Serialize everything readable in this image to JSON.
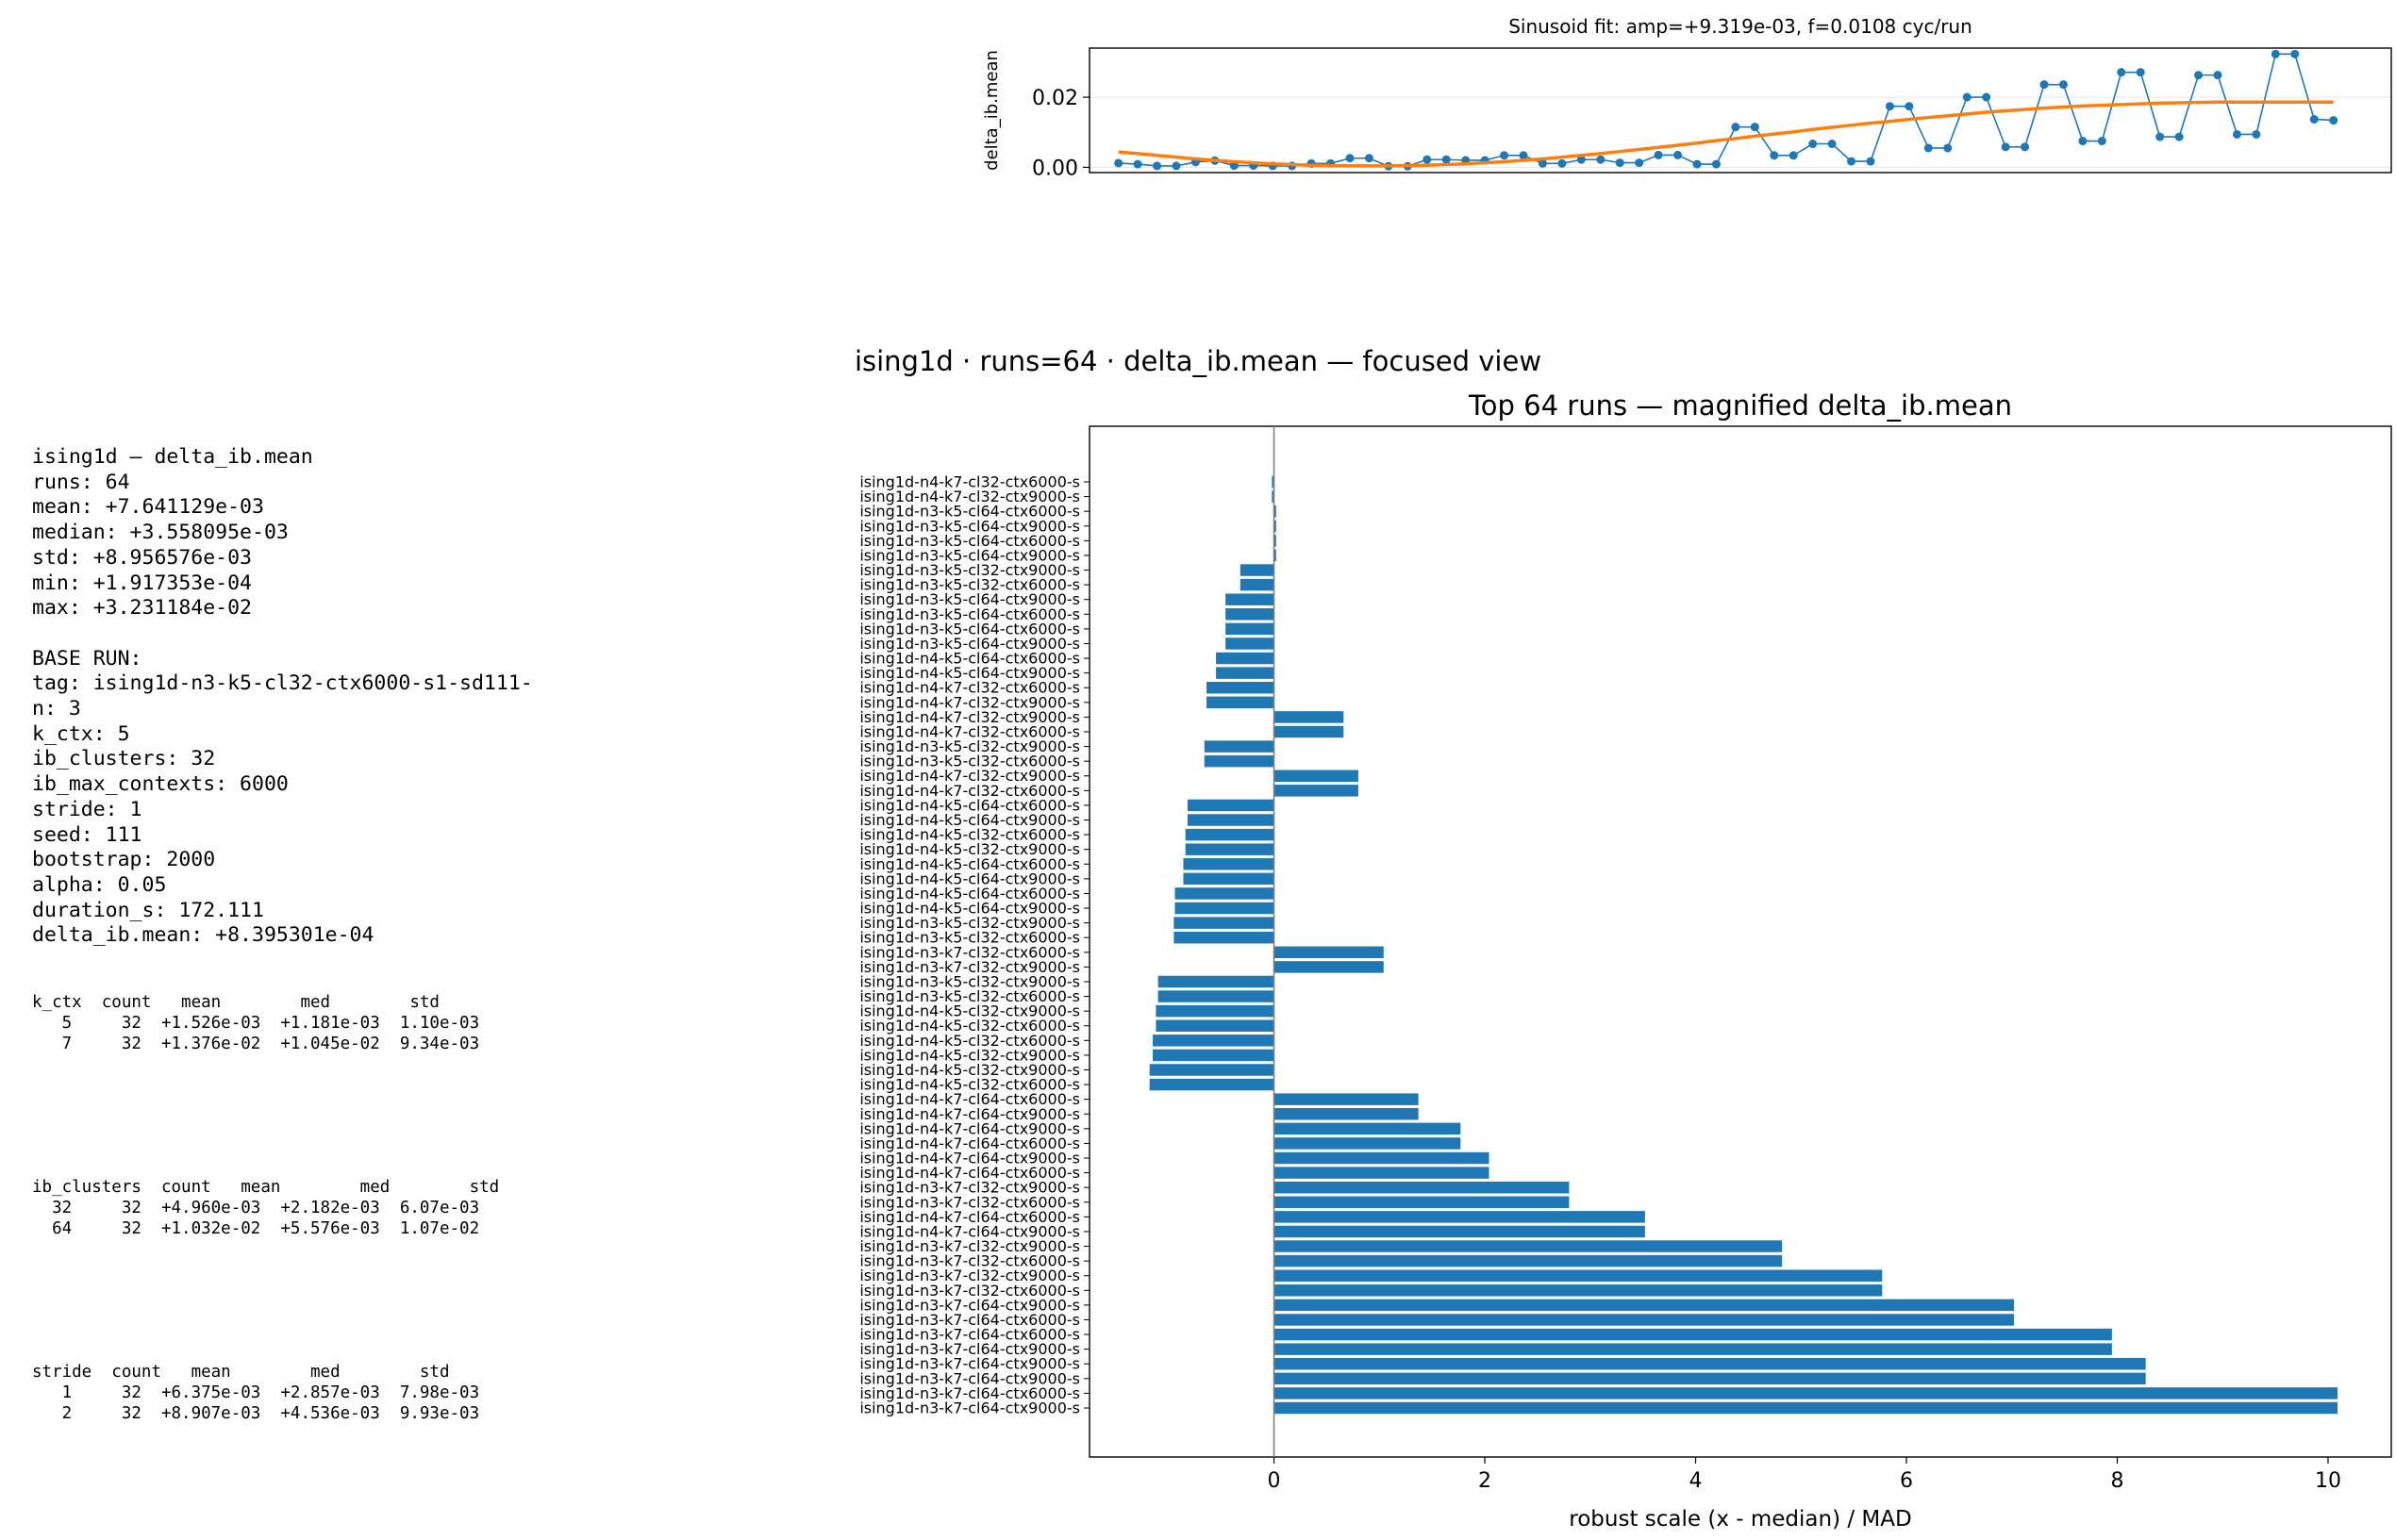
{
  "suptitle": "ising1d · runs=64 · delta_ib.mean — focused view",
  "info_lines": [
    "ising1d — delta_ib.mean",
    "runs: 64",
    "mean: +7.641129e-03",
    "median: +3.558095e-03",
    "std: +8.956576e-03",
    "min: +1.917353e-04",
    "max: +3.231184e-02",
    "",
    "BASE RUN:",
    "tag: ising1d-n3-k5-cl32-ctx6000-s1-sd111-",
    "n: 3",
    "k_ctx: 5",
    "ib_clusters: 32",
    "ib_max_contexts: 6000",
    "stride: 1",
    "seed: 111",
    "bootstrap: 2000",
    "alpha: 0.05",
    "duration_s: 172.111",
    "delta_ib.mean: +8.395301e-04"
  ],
  "tables": {
    "k_ctx": [
      "k_ctx  count   mean        med        std",
      "   5     32  +1.526e-03  +1.181e-03  1.10e-03",
      "   7     32  +1.376e-02  +1.045e-02  9.34e-03"
    ],
    "ib_clusters": [
      "ib_clusters  count   mean        med        std",
      "  32     32  +4.960e-03  +2.182e-03  6.07e-03",
      "  64     32  +1.032e-02  +5.576e-03  1.07e-02"
    ],
    "stride": [
      "stride  count   mean        med        std",
      "   1     32  +6.375e-03  +2.857e-03  7.98e-03",
      "   2     32  +8.907e-03  +4.536e-03  9.93e-03"
    ]
  },
  "chart_data": [
    {
      "type": "line",
      "title": "Sinusoid fit: amp=+9.319e-03, f=0.0108 cyc/run",
      "xlabel": "",
      "ylabel": "delta_ib.mean",
      "yticks": [
        "0.00",
        "0.02"
      ],
      "ylim": [
        -0.0015,
        0.034
      ],
      "xlim": [
        -1.5,
        66
      ],
      "grid": "y",
      "colors": {
        "data": "#1f77b4",
        "fit": "#ff7f0e"
      },
      "series": [
        {
          "kind": "observed",
          "values": [
            0.0012,
            0.0009,
            0.0004,
            0.0004,
            0.0015,
            0.0019,
            0.0005,
            0.0005,
            0.0004,
            0.0004,
            0.0011,
            0.0011,
            0.0026,
            0.0026,
            0.0003,
            0.0003,
            0.0022,
            0.0022,
            0.002,
            0.002,
            0.0034,
            0.0034,
            0.0011,
            0.0011,
            0.0022,
            0.0022,
            0.0013,
            0.0013,
            0.0035,
            0.0035,
            0.0009,
            0.0009,
            0.0115,
            0.0115,
            0.0034,
            0.0034,
            0.0067,
            0.0067,
            0.0017,
            0.0017,
            0.0174,
            0.0174,
            0.0055,
            0.0055,
            0.02,
            0.02,
            0.0058,
            0.0058,
            0.0236,
            0.0236,
            0.0075,
            0.0075,
            0.0271,
            0.0271,
            0.0087,
            0.0087,
            0.0263,
            0.0263,
            0.0094,
            0.0094,
            0.0323,
            0.0323,
            0.0137,
            0.0134
          ]
        },
        {
          "kind": "fit",
          "values": [
            0.0044,
            0.0039,
            0.0034,
            0.0029,
            0.0024,
            0.002,
            0.0016,
            0.0013,
            0.001,
            0.0008,
            0.0006,
            0.0005,
            0.0004,
            0.0004,
            0.0004,
            0.0005,
            0.0006,
            0.0008,
            0.001,
            0.0013,
            0.0016,
            0.002,
            0.0024,
            0.0029,
            0.0034,
            0.0039,
            0.0045,
            0.0051,
            0.0057,
            0.0063,
            0.0069,
            0.0076,
            0.0082,
            0.0089,
            0.0095,
            0.0101,
            0.0108,
            0.0114,
            0.012,
            0.0126,
            0.0131,
            0.0137,
            0.0142,
            0.0147,
            0.0152,
            0.0157,
            0.0161,
            0.0165,
            0.0169,
            0.0172,
            0.0175,
            0.0177,
            0.0179,
            0.0181,
            0.0183,
            0.0184,
            0.0185,
            0.0186,
            0.0186,
            0.0186,
            0.0186,
            0.0186,
            0.0186,
            0.0186
          ]
        }
      ]
    },
    {
      "type": "bar",
      "orientation": "horizontal",
      "title": "Top 64 runs — magnified delta_ib.mean",
      "xlabel": "robust scale  (x - median) / MAD",
      "ylabel": "",
      "xlim": [
        -1.75,
        10.6
      ],
      "xticks": [
        0,
        2,
        4,
        6,
        8,
        10
      ],
      "color": "#1f77b4",
      "categories": [
        "ising1d-n4-k7-cl32-ctx6000-s",
        "ising1d-n4-k7-cl32-ctx9000-s",
        "ising1d-n3-k5-cl64-ctx6000-s",
        "ising1d-n3-k5-cl64-ctx9000-s",
        "ising1d-n3-k5-cl64-ctx6000-s",
        "ising1d-n3-k5-cl64-ctx9000-s",
        "ising1d-n3-k5-cl32-ctx9000-s",
        "ising1d-n3-k5-cl32-ctx6000-s",
        "ising1d-n3-k5-cl64-ctx9000-s",
        "ising1d-n3-k5-cl64-ctx6000-s",
        "ising1d-n3-k5-cl64-ctx6000-s",
        "ising1d-n3-k5-cl64-ctx9000-s",
        "ising1d-n4-k5-cl64-ctx6000-s",
        "ising1d-n4-k5-cl64-ctx9000-s",
        "ising1d-n4-k7-cl32-ctx6000-s",
        "ising1d-n4-k7-cl32-ctx9000-s",
        "ising1d-n4-k7-cl32-ctx9000-s",
        "ising1d-n4-k7-cl32-ctx6000-s",
        "ising1d-n3-k5-cl32-ctx9000-s",
        "ising1d-n3-k5-cl32-ctx6000-s",
        "ising1d-n4-k7-cl32-ctx9000-s",
        "ising1d-n4-k7-cl32-ctx6000-s",
        "ising1d-n4-k5-cl64-ctx6000-s",
        "ising1d-n4-k5-cl64-ctx9000-s",
        "ising1d-n4-k5-cl32-ctx6000-s",
        "ising1d-n4-k5-cl32-ctx9000-s",
        "ising1d-n4-k5-cl64-ctx6000-s",
        "ising1d-n4-k5-cl64-ctx9000-s",
        "ising1d-n4-k5-cl64-ctx6000-s",
        "ising1d-n4-k5-cl64-ctx9000-s",
        "ising1d-n3-k5-cl32-ctx9000-s",
        "ising1d-n3-k5-cl32-ctx6000-s",
        "ising1d-n3-k7-cl32-ctx6000-s",
        "ising1d-n3-k7-cl32-ctx9000-s",
        "ising1d-n3-k5-cl32-ctx9000-s",
        "ising1d-n3-k5-cl32-ctx6000-s",
        "ising1d-n4-k5-cl32-ctx9000-s",
        "ising1d-n4-k5-cl32-ctx6000-s",
        "ising1d-n4-k5-cl32-ctx6000-s",
        "ising1d-n4-k5-cl32-ctx9000-s",
        "ising1d-n4-k5-cl32-ctx9000-s",
        "ising1d-n4-k5-cl32-ctx6000-s",
        "ising1d-n4-k7-cl64-ctx6000-s",
        "ising1d-n4-k7-cl64-ctx9000-s",
        "ising1d-n4-k7-cl64-ctx9000-s",
        "ising1d-n4-k7-cl64-ctx6000-s",
        "ising1d-n4-k7-cl64-ctx9000-s",
        "ising1d-n4-k7-cl64-ctx6000-s",
        "ising1d-n3-k7-cl32-ctx9000-s",
        "ising1d-n3-k7-cl32-ctx6000-s",
        "ising1d-n4-k7-cl64-ctx6000-s",
        "ising1d-n4-k7-cl64-ctx9000-s",
        "ising1d-n3-k7-cl32-ctx9000-s",
        "ising1d-n3-k7-cl32-ctx6000-s",
        "ising1d-n3-k7-cl32-ctx9000-s",
        "ising1d-n3-k7-cl32-ctx6000-s",
        "ising1d-n3-k7-cl64-ctx9000-s",
        "ising1d-n3-k7-cl64-ctx6000-s",
        "ising1d-n3-k7-cl64-ctx6000-s",
        "ising1d-n3-k7-cl64-ctx9000-s",
        "ising1d-n3-k7-cl64-ctx9000-s",
        "ising1d-n3-k7-cl64-ctx9000-s",
        "ising1d-n3-k7-cl64-ctx6000-s",
        "ising1d-n3-k7-cl64-ctx9000-s"
      ],
      "values": [
        -0.02,
        -0.02,
        0.02,
        0.02,
        0.02,
        0.02,
        -0.32,
        -0.32,
        -0.46,
        -0.46,
        -0.46,
        -0.46,
        -0.55,
        -0.55,
        -0.64,
        -0.64,
        0.66,
        0.66,
        -0.66,
        -0.66,
        0.8,
        0.8,
        -0.82,
        -0.82,
        -0.84,
        -0.84,
        -0.86,
        -0.86,
        -0.94,
        -0.94,
        -0.95,
        -0.95,
        1.04,
        1.04,
        -1.1,
        -1.1,
        -1.12,
        -1.12,
        -1.15,
        -1.15,
        -1.18,
        -1.18,
        1.37,
        1.37,
        1.77,
        1.77,
        2.04,
        2.04,
        2.8,
        2.8,
        3.52,
        3.52,
        4.82,
        4.82,
        5.77,
        5.77,
        7.02,
        7.02,
        7.95,
        7.95,
        8.27,
        8.27,
        10.09,
        10.09
      ]
    }
  ]
}
